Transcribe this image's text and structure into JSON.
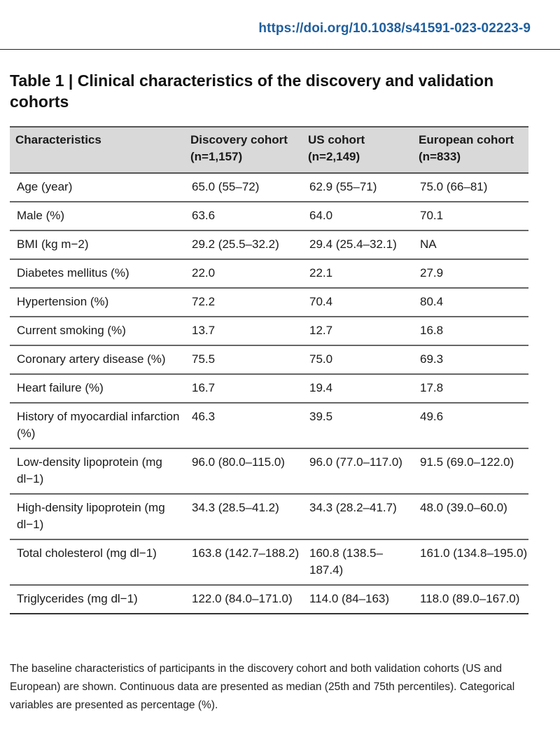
{
  "doi": "https://doi.org/10.1038/s41591-023-02223-9",
  "title": "Table 1 | Clinical characteristics of the discovery and validation cohorts",
  "headers": {
    "characteristics": "Characteristics",
    "discovery": "Discovery cohort (n=1,157)",
    "us": "US cohort (n=2,149)",
    "european": "European cohort (n=833)"
  },
  "rows": [
    {
      "label": "Age (year)",
      "discovery": "65.0 (55–72)",
      "us": "62.9 (55–71)",
      "european": "75.0 (66–81)"
    },
    {
      "label": "Male (%)",
      "discovery": "63.6",
      "us": "64.0",
      "european": "70.1"
    },
    {
      "label": "BMI (kg m−2)",
      "discovery": "29.2 (25.5–32.2)",
      "us": "29.4 (25.4–32.1)",
      "european": "NA"
    },
    {
      "label": "Diabetes mellitus (%)",
      "discovery": "22.0",
      "us": "22.1",
      "european": "27.9"
    },
    {
      "label": "Hypertension (%)",
      "discovery": "72.2",
      "us": "70.4",
      "european": "80.4"
    },
    {
      "label": "Current smoking (%)",
      "discovery": "13.7",
      "us": "12.7",
      "european": "16.8"
    },
    {
      "label": "Coronary artery disease (%)",
      "discovery": "75.5",
      "us": "75.0",
      "european": "69.3"
    },
    {
      "label": "Heart failure (%)",
      "discovery": "16.7",
      "us": "19.4",
      "european": "17.8"
    },
    {
      "label": "History of myocardial infarction (%)",
      "discovery": "46.3",
      "us": "39.5",
      "european": "49.6"
    },
    {
      "label": "Low-density lipoprotein (mg dl−1)",
      "discovery": "96.0 (80.0–115.0)",
      "us": "96.0 (77.0–117.0)",
      "european": "91.5 (69.0–122.0)"
    },
    {
      "label": "High-density lipoprotein (mg dl−1)",
      "discovery": "34.3 (28.5–41.2)",
      "us": "34.3 (28.2–41.7)",
      "european": "48.0 (39.0–60.0)"
    },
    {
      "label": "Total cholesterol (mg dl−1)",
      "discovery": "163.8 (142.7–188.2)",
      "us": "160.8 (138.5–187.4)",
      "european": "161.0 (134.8–195.0)"
    },
    {
      "label": "Triglycerides (mg dl−1)",
      "discovery": "122.0 (84.0–171.0)",
      "us": "114.0 (84–163)",
      "european": "118.0 (89.0–167.0)"
    }
  ],
  "footnote": "The baseline characteristics of participants in the discovery cohort and both validation cohorts (US and European) are shown. Continuous data are presented as median (25th and 75th percentiles). Categorical variables are presented as percentage (%)."
}
